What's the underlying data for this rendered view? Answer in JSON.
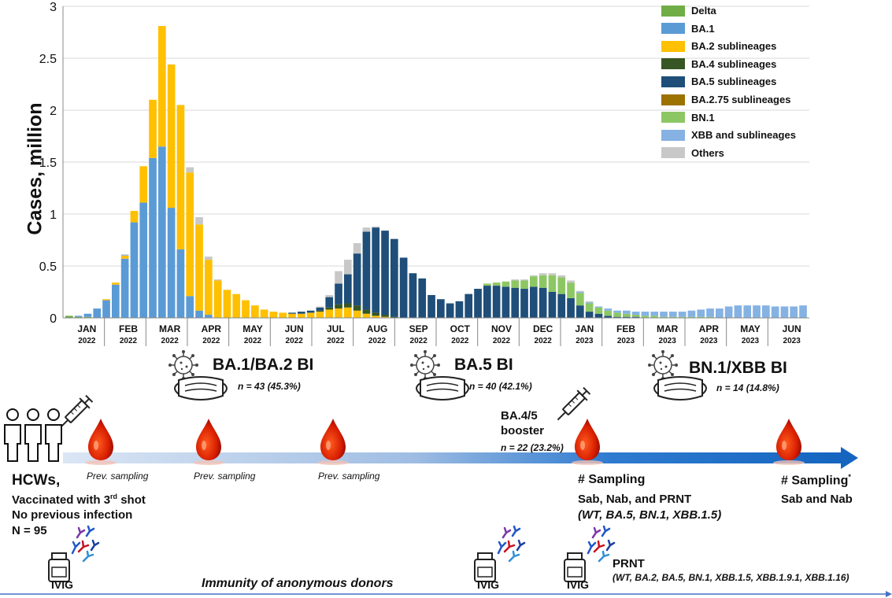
{
  "chart_data": {
    "type": "bar",
    "stacked": true,
    "ylabel": "Cases, million",
    "ylim": [
      0,
      3
    ],
    "yticks": [
      "0",
      "0.5",
      "1",
      "1.5",
      "2",
      "2.5",
      "3"
    ],
    "xticks": [
      {
        "month": "JAN",
        "year": "2022"
      },
      {
        "month": "FEB",
        "year": "2022"
      },
      {
        "month": "MAR",
        "year": "2022"
      },
      {
        "month": "APR",
        "year": "2022"
      },
      {
        "month": "MAY",
        "year": "2022"
      },
      {
        "month": "JUN",
        "year": "2022"
      },
      {
        "month": "JUL",
        "year": "2022"
      },
      {
        "month": "AUG",
        "year": "2022"
      },
      {
        "month": "SEP",
        "year": "2022"
      },
      {
        "month": "OCT",
        "year": "2022"
      },
      {
        "month": "NOV",
        "year": "2022"
      },
      {
        "month": "DEC",
        "year": "2022"
      },
      {
        "month": "JAN",
        "year": "2023"
      },
      {
        "month": "FEB",
        "year": "2023"
      },
      {
        "month": "MAR",
        "year": "2023"
      },
      {
        "month": "APR",
        "year": "2023"
      },
      {
        "month": "MAY",
        "year": "2023"
      },
      {
        "month": "JUN",
        "year": "2023"
      }
    ],
    "legend_position": "top-right",
    "series": [
      {
        "name": "Delta",
        "color": "#70AD47"
      },
      {
        "name": "BA.1",
        "color": "#5B9BD5"
      },
      {
        "name": "BA.2 sublineages",
        "color": "#FFC000"
      },
      {
        "name": "BA.4 sublineages",
        "color": "#375623"
      },
      {
        "name": "BA.5 sublineages",
        "color": "#1F4E79"
      },
      {
        "name": "BA.2.75 sublineages",
        "color": "#9C7200"
      },
      {
        "name": "BN.1",
        "color": "#8DC764"
      },
      {
        "name": "XBB and sublineages",
        "color": "#85B2E3"
      },
      {
        "name": "Others",
        "color": "#C8C8C8"
      }
    ],
    "weekly": [
      [
        0.02,
        0,
        0,
        0,
        0,
        0,
        0,
        0,
        0
      ],
      [
        0.01,
        0.01,
        0,
        0,
        0,
        0,
        0,
        0,
        0
      ],
      [
        0.01,
        0.03,
        0,
        0,
        0,
        0,
        0,
        0,
        0
      ],
      [
        0,
        0.09,
        0,
        0,
        0,
        0,
        0,
        0,
        0
      ],
      [
        0,
        0.17,
        0.01,
        0,
        0,
        0,
        0,
        0,
        0
      ],
      [
        0,
        0.32,
        0.02,
        0,
        0,
        0,
        0,
        0,
        0
      ],
      [
        0,
        0.57,
        0.03,
        0,
        0,
        0,
        0,
        0.01,
        0
      ],
      [
        0,
        0.92,
        0.11,
        0,
        0,
        0,
        0,
        0,
        0
      ],
      [
        0,
        1.11,
        0.35,
        0,
        0,
        0,
        0,
        0,
        0
      ],
      [
        0,
        1.54,
        0.56,
        0,
        0,
        0,
        0,
        0,
        0
      ],
      [
        0,
        1.65,
        1.16,
        0,
        0,
        0,
        0,
        0,
        0
      ],
      [
        0,
        1.06,
        1.38,
        0,
        0,
        0,
        0,
        0,
        0
      ],
      [
        0,
        0.66,
        1.39,
        0,
        0,
        0,
        0,
        0,
        0
      ],
      [
        0,
        0.21,
        1.19,
        0,
        0,
        0,
        0,
        0,
        0.05
      ],
      [
        0,
        0.07,
        0.83,
        0,
        0,
        0,
        0,
        0,
        0.07
      ],
      [
        0,
        0.03,
        0.53,
        0,
        0,
        0,
        0,
        0,
        0.03
      ],
      [
        0,
        0,
        0.36,
        0,
        0,
        0,
        0,
        0,
        0.01
      ],
      [
        0,
        0,
        0.27,
        0,
        0,
        0,
        0,
        0,
        0
      ],
      [
        0,
        0,
        0.23,
        0,
        0,
        0,
        0,
        0,
        0
      ],
      [
        0,
        0,
        0.17,
        0,
        0,
        0,
        0,
        0,
        0
      ],
      [
        0,
        0,
        0.12,
        0,
        0,
        0,
        0,
        0,
        0
      ],
      [
        0,
        0,
        0.08,
        0,
        0,
        0,
        0,
        0,
        0
      ],
      [
        0,
        0,
        0.06,
        0,
        0,
        0,
        0,
        0,
        0
      ],
      [
        0,
        0,
        0.05,
        0,
        0,
        0,
        0,
        0,
        0
      ],
      [
        0,
        0,
        0.04,
        0,
        0.01,
        0,
        0,
        0,
        0
      ],
      [
        0,
        0,
        0.04,
        0,
        0.02,
        0,
        0,
        0,
        0
      ],
      [
        0,
        0,
        0.05,
        0,
        0.02,
        0,
        0,
        0,
        0
      ],
      [
        0,
        0,
        0.06,
        0.01,
        0.03,
        0,
        0,
        0,
        0.01
      ],
      [
        0,
        0,
        0.08,
        0.02,
        0.1,
        0,
        0,
        0,
        0.02
      ],
      [
        0,
        0,
        0.09,
        0.04,
        0.2,
        0,
        0,
        0,
        0.12
      ],
      [
        0,
        0,
        0.1,
        0.04,
        0.28,
        0,
        0,
        0,
        0.14
      ],
      [
        0,
        0,
        0.07,
        0.05,
        0.5,
        0,
        0,
        0,
        0.1
      ],
      [
        0,
        0,
        0.04,
        0.04,
        0.75,
        0,
        0,
        0,
        0.04
      ],
      [
        0,
        0,
        0.02,
        0.03,
        0.82,
        0,
        0,
        0,
        0.01
      ],
      [
        0,
        0,
        0.01,
        0.02,
        0.81,
        0,
        0,
        0,
        0
      ],
      [
        0,
        0,
        0,
        0.01,
        0.75,
        0,
        0,
        0,
        0
      ],
      [
        0,
        0,
        0,
        0,
        0.58,
        0,
        0,
        0,
        0
      ],
      [
        0,
        0,
        0,
        0,
        0.43,
        0,
        0,
        0,
        0
      ],
      [
        0,
        0,
        0,
        0,
        0.38,
        0,
        0,
        0,
        0
      ],
      [
        0,
        0,
        0,
        0,
        0.22,
        0,
        0,
        0,
        0
      ],
      [
        0,
        0,
        0,
        0,
        0.18,
        0,
        0,
        0,
        0
      ],
      [
        0,
        0,
        0,
        0,
        0.14,
        0,
        0,
        0,
        0
      ],
      [
        0,
        0,
        0,
        0,
        0.16,
        0,
        0,
        0,
        0
      ],
      [
        0,
        0,
        0,
        0,
        0.23,
        0,
        0,
        0,
        0
      ],
      [
        0,
        0,
        0,
        0,
        0.28,
        0,
        0,
        0,
        0
      ],
      [
        0,
        0,
        0,
        0,
        0.31,
        0,
        0.02,
        0,
        0
      ],
      [
        0,
        0,
        0,
        0,
        0.31,
        0,
        0.03,
        0,
        0
      ],
      [
        0,
        0,
        0,
        0,
        0.3,
        0,
        0.05,
        0,
        0
      ],
      [
        0,
        0,
        0,
        0,
        0.29,
        0,
        0.07,
        0,
        0.01
      ],
      [
        0,
        0,
        0,
        0,
        0.28,
        0,
        0.08,
        0,
        0.01
      ],
      [
        0,
        0,
        0,
        0,
        0.3,
        0,
        0.1,
        0,
        0.01
      ],
      [
        0,
        0,
        0,
        0,
        0.29,
        0,
        0.12,
        0,
        0.02
      ],
      [
        0,
        0,
        0,
        0,
        0.25,
        0,
        0.16,
        0,
        0.02
      ],
      [
        0,
        0,
        0,
        0,
        0.23,
        0,
        0.16,
        0,
        0.02
      ],
      [
        0,
        0,
        0,
        0,
        0.19,
        0,
        0.15,
        0,
        0.02
      ],
      [
        0,
        0,
        0,
        0,
        0.12,
        0,
        0.12,
        0.01,
        0.01
      ],
      [
        0,
        0,
        0,
        0,
        0.06,
        0,
        0.08,
        0.01,
        0.01
      ],
      [
        0,
        0,
        0,
        0,
        0.04,
        0,
        0.06,
        0.01,
        0
      ],
      [
        0,
        0,
        0,
        0,
        0.02,
        0,
        0.05,
        0.02,
        0
      ],
      [
        0,
        0,
        0,
        0,
        0.01,
        0,
        0.04,
        0.02,
        0
      ],
      [
        0,
        0,
        0,
        0,
        0.01,
        0,
        0.03,
        0.03,
        0
      ],
      [
        0,
        0,
        0,
        0,
        0.01,
        0,
        0.02,
        0.03,
        0
      ],
      [
        0,
        0,
        0,
        0,
        0,
        0,
        0.02,
        0.04,
        0
      ],
      [
        0,
        0,
        0,
        0,
        0,
        0,
        0.02,
        0.04,
        0
      ],
      [
        0,
        0,
        0,
        0,
        0,
        0,
        0.01,
        0.05,
        0
      ],
      [
        0,
        0,
        0,
        0,
        0,
        0,
        0.01,
        0.05,
        0
      ],
      [
        0,
        0,
        0,
        0,
        0,
        0,
        0.01,
        0.05,
        0
      ],
      [
        0,
        0,
        0,
        0,
        0,
        0,
        0.01,
        0.06,
        0
      ],
      [
        0,
        0,
        0,
        0,
        0,
        0,
        0.01,
        0.07,
        0
      ],
      [
        0,
        0,
        0,
        0,
        0,
        0,
        0.01,
        0.08,
        0
      ],
      [
        0,
        0,
        0,
        0,
        0,
        0,
        0,
        0.09,
        0
      ],
      [
        0,
        0,
        0,
        0,
        0,
        0,
        0,
        0.11,
        0
      ],
      [
        0,
        0,
        0,
        0,
        0,
        0,
        0,
        0.12,
        0
      ],
      [
        0,
        0,
        0,
        0,
        0,
        0,
        0,
        0.12,
        0
      ],
      [
        0,
        0,
        0,
        0,
        0,
        0,
        0,
        0.12,
        0
      ],
      [
        0,
        0,
        0,
        0,
        0,
        0,
        0,
        0.12,
        0
      ],
      [
        0,
        0,
        0,
        0,
        0,
        0,
        0,
        0.11,
        0
      ],
      [
        0,
        0,
        0,
        0,
        0,
        0,
        0,
        0.11,
        0
      ],
      [
        0,
        0,
        0,
        0,
        0,
        0,
        0,
        0.11,
        0
      ],
      [
        0,
        0,
        0,
        0,
        0,
        0,
        0,
        0.12,
        0
      ]
    ]
  },
  "events": {
    "bi1": {
      "title": "BA.1/BA.2 BI",
      "n": "n = 43 (45.3%)"
    },
    "bi2": {
      "title": "BA.5 BI",
      "n": "n = 40 (42.1%)"
    },
    "bi3": {
      "title": "BN.1/XBB BI",
      "n": "n = 14 (14.8%)"
    }
  },
  "booster": {
    "line1": "BA.4/5",
    "line2": "booster",
    "n": "n = 22 (23.2%)"
  },
  "prev_sampling": "Prev. sampling",
  "cohort": {
    "line1": "HCWs,",
    "line2_pre": "Vaccinated with 3",
    "line2_sup": "rd",
    "line2_post": " shot",
    "line3": "No previous infection",
    "line4": "N = 95"
  },
  "sampling1": {
    "title": "# Sampling",
    "line2": "Sab, Nab, and PRNT",
    "line3": "(WT, BA.5, BN.1, XBB.1.5)"
  },
  "sampling2": {
    "title": "# Sampling",
    "sup": "*",
    "line2": "Sab and Nab"
  },
  "ivig": {
    "label": "IVIG",
    "immunity": "Immunity of anonymous donors",
    "prnt": "PRNT",
    "prnt_variants": "(WT, BA.2, BA.5, BN.1, XBB.1.5, XBB.1.9.1, XBB.1.16)"
  }
}
